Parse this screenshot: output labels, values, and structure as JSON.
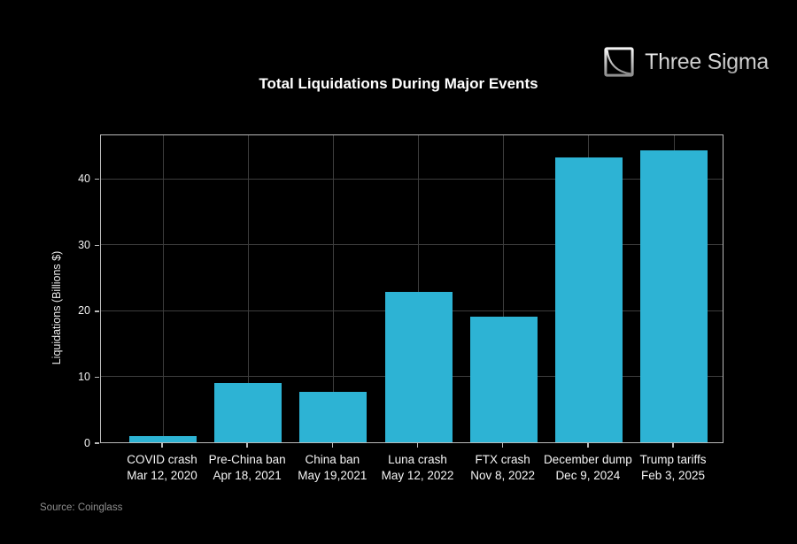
{
  "branding": {
    "name": "Three Sigma",
    "logo_icon": "three-sigma-curve-icon"
  },
  "source_note": "Source: Coinglass",
  "chart_data": {
    "type": "bar",
    "title": "Total Liquidations During Major Events",
    "xlabel": "",
    "ylabel": "Liquidations (Billions $)",
    "categories": [
      "COVID crash",
      "Pre-China ban",
      "China ban",
      "Luna crash",
      "FTX crash",
      "December dump",
      "Trump tariffs"
    ],
    "category_dates": [
      "Mar 12, 2020",
      "Apr 18, 2021",
      "May 19,2021",
      "May 12, 2022",
      "Nov 8, 2022",
      "Dec 9, 2024",
      "Feb 3, 2025"
    ],
    "values": [
      1.0,
      9.0,
      7.7,
      22.8,
      19.0,
      43.2,
      44.3
    ],
    "yticks": [
      0,
      10,
      20,
      30,
      40
    ],
    "ylim": [
      0,
      46.8
    ],
    "grid": true,
    "legend": "none",
    "bar_color": "#2db3d4",
    "background_color": "#000000",
    "grid_color": "#3d3d3d",
    "axis_color": "#b9b9b9",
    "tick_label_color": "#f2f2f2",
    "title_color": "#ffffff",
    "source_color": "#8f8f8f"
  }
}
